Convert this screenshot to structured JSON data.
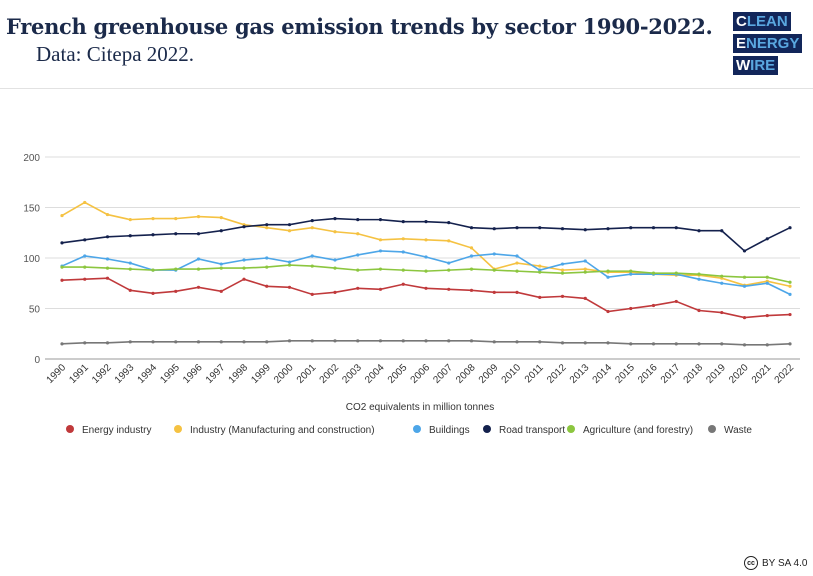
{
  "header": {
    "title": "French greenhouse gas emission trends by sector 1990-2022.",
    "subtitle": "Data: Citepa 2022.",
    "logo_lines": [
      "CLEAN",
      "ENERGY",
      "WIRE"
    ]
  },
  "license": {
    "label": "BY SA 4.0",
    "icon": "cc-icon"
  },
  "chart_data": {
    "type": "line",
    "title": "",
    "xlabel": "CO2 equivalents in million tonnes",
    "ylabel": "",
    "ylim": [
      0,
      200
    ],
    "yticks": [
      0,
      50,
      100,
      150,
      200
    ],
    "grid": true,
    "legend_placement": "bottom",
    "x": [
      1990,
      1991,
      1992,
      1993,
      1994,
      1995,
      1996,
      1997,
      1998,
      1999,
      2000,
      2001,
      2002,
      2003,
      2004,
      2005,
      2006,
      2007,
      2008,
      2009,
      2010,
      2011,
      2012,
      2013,
      2014,
      2015,
      2016,
      2017,
      2018,
      2019,
      2020,
      2021,
      2022
    ],
    "series": [
      {
        "name": "Energy industry",
        "color": "#c0393b",
        "values": [
          78,
          79,
          80,
          68,
          65,
          67,
          71,
          67,
          79,
          72,
          71,
          64,
          66,
          70,
          69,
          74,
          70,
          69,
          68,
          66,
          66,
          61,
          62,
          60,
          47,
          50,
          53,
          57,
          48,
          46,
          41,
          43,
          44
        ]
      },
      {
        "name": "Industry (Manufacturing and construction)",
        "color": "#f5c242",
        "values": [
          142,
          155,
          143,
          138,
          139,
          139,
          141,
          140,
          133,
          130,
          127,
          130,
          126,
          124,
          118,
          119,
          118,
          117,
          110,
          89,
          95,
          92,
          88,
          89,
          86,
          86,
          84,
          83,
          83,
          80,
          73,
          77,
          72
        ]
      },
      {
        "name": "Buildings",
        "color": "#4da6e8",
        "values": [
          92,
          102,
          99,
          95,
          88,
          88,
          99,
          94,
          98,
          100,
          96,
          102,
          98,
          103,
          107,
          106,
          101,
          95,
          102,
          104,
          102,
          88,
          94,
          97,
          81,
          84,
          84,
          84,
          79,
          75,
          72,
          75,
          64
        ]
      },
      {
        "name": "Road transport",
        "color": "#14214d",
        "values": [
          115,
          118,
          121,
          122,
          123,
          124,
          124,
          127,
          131,
          133,
          133,
          137,
          139,
          138,
          138,
          136,
          136,
          135,
          130,
          129,
          130,
          130,
          129,
          128,
          129,
          130,
          130,
          130,
          127,
          127,
          107,
          119,
          130
        ]
      },
      {
        "name": "Agriculture (and forestry)",
        "color": "#8cc63f",
        "values": [
          91,
          91,
          90,
          89,
          88,
          89,
          89,
          90,
          90,
          91,
          93,
          92,
          90,
          88,
          89,
          88,
          87,
          88,
          89,
          88,
          87,
          86,
          85,
          86,
          87,
          87,
          85,
          85,
          84,
          82,
          81,
          81,
          76
        ]
      },
      {
        "name": "Waste",
        "color": "#777777",
        "values": [
          15,
          16,
          16,
          17,
          17,
          17,
          17,
          17,
          17,
          17,
          18,
          18,
          18,
          18,
          18,
          18,
          18,
          18,
          18,
          17,
          17,
          17,
          16,
          16,
          16,
          15,
          15,
          15,
          15,
          15,
          14,
          14,
          15
        ]
      }
    ]
  }
}
